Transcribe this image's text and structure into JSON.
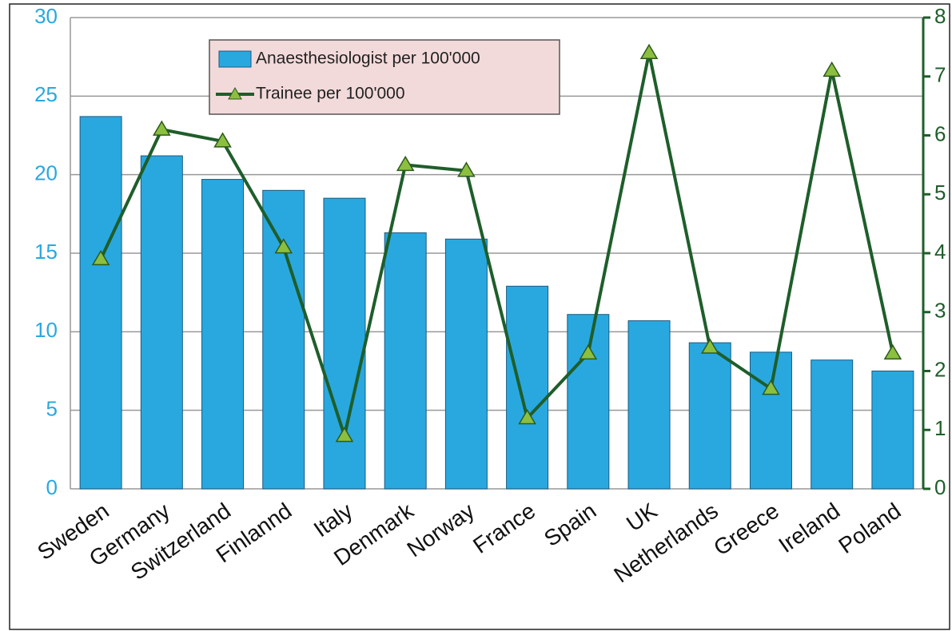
{
  "chart_data": {
    "type": "bar",
    "categories": [
      "Sweden",
      "Germany",
      "Switzerland",
      "Finlannd",
      "Italy",
      "Denmark",
      "Norway",
      "France",
      "Spain",
      "UK",
      "Netherlands",
      "Greece",
      "Ireland",
      "Poland"
    ],
    "series": [
      {
        "name": "Anaesthesiologist per 100'000",
        "type": "bar",
        "color": "#29a8e0",
        "values": [
          23.7,
          21.2,
          19.7,
          19.0,
          18.5,
          16.3,
          15.9,
          12.9,
          11.1,
          10.7,
          9.3,
          8.7,
          8.2,
          7.5
        ]
      },
      {
        "name": "Trainee per 100'000",
        "type": "line",
        "axis": "y2",
        "color": "#1e5e2a",
        "values": [
          3.9,
          6.1,
          5.9,
          4.1,
          0.9,
          5.5,
          5.4,
          1.2,
          2.3,
          7.4,
          2.4,
          1.7,
          7.1,
          2.3
        ]
      }
    ],
    "ylim": [
      0,
      30
    ],
    "yticks": [
      0,
      5,
      10,
      15,
      20,
      25,
      30
    ],
    "y2lim": [
      0,
      8
    ],
    "y2ticks": [
      0,
      1,
      2,
      3,
      4,
      5,
      6,
      7,
      8
    ],
    "grid": true,
    "legend": "top-left"
  }
}
